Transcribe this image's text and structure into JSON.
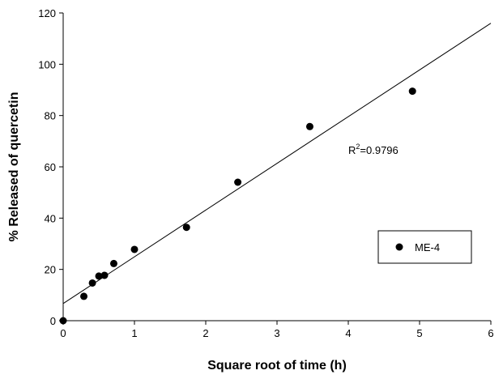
{
  "chart_data": {
    "type": "scatter",
    "xlabel": "Square root of time (h)",
    "ylabel": "% Released of quercetin",
    "xlim": [
      0,
      6
    ],
    "ylim": [
      0,
      120
    ],
    "x_ticks": [
      "0",
      "1",
      "2",
      "3",
      "4",
      "5",
      "6"
    ],
    "y_ticks": [
      "0",
      "20",
      "40",
      "60",
      "80",
      "100",
      "120"
    ],
    "grid": false,
    "legend_position": "right",
    "series": [
      {
        "name": "ME-4",
        "marker": "filled-circle",
        "color": "#000000",
        "points": [
          {
            "x": 0,
            "y": 0
          },
          {
            "x": 0.29,
            "y": 9.5
          },
          {
            "x": 0.41,
            "y": 14.7
          },
          {
            "x": 0.5,
            "y": 17.4
          },
          {
            "x": 0.58,
            "y": 17.7
          },
          {
            "x": 0.71,
            "y": 22.3
          },
          {
            "x": 1.0,
            "y": 27.8
          },
          {
            "x": 1.73,
            "y": 36.4
          },
          {
            "x": 2.45,
            "y": 54.0
          },
          {
            "x": 3.46,
            "y": 75.7
          },
          {
            "x": 4.9,
            "y": 89.5
          }
        ]
      }
    ],
    "trendline": {
      "type": "linear",
      "x_start": 0,
      "y_start": 6.7,
      "x_end": 6,
      "y_end": 116,
      "color": "#000000"
    },
    "annotation": {
      "r_prefix": "R",
      "r_sup": "2",
      "r_value": "=0.9796",
      "x": 4.0,
      "y": 65
    }
  }
}
